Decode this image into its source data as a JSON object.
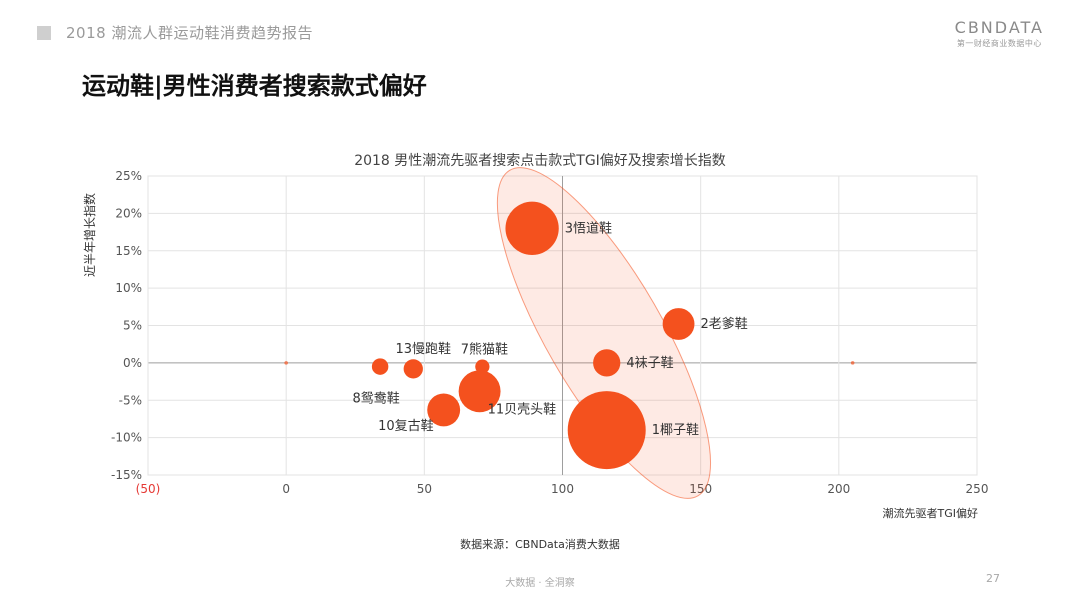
{
  "header": {
    "report_title": "2018 潮流人群运动鞋消费趋势报告",
    "brand_name": "CBNDATA",
    "brand_subtitle": "第一财经商业数据中心"
  },
  "page_heading": "运动鞋|男性消费者搜索款式偏好",
  "chart_data": {
    "type": "scatter",
    "subtype": "bubble",
    "title": "2018 男性潮流先驱者搜索点击款式TGI偏好及搜索增长指数",
    "xlabel": "潮流先驱者TGI偏好",
    "ylabel": "近半年增长指数",
    "xlim": [
      -50,
      250
    ],
    "ylim": [
      -15,
      25
    ],
    "x_ticks": [
      "(50)",
      "0",
      "50",
      "100",
      "150",
      "200",
      "250"
    ],
    "y_ticks": [
      "25%",
      "20%",
      "15%",
      "10%",
      "5%",
      "0%",
      "-5%",
      "-10%",
      "-15%"
    ],
    "grid": true,
    "bubble_color": "#f4511e",
    "points": [
      {
        "label": "3悟道鞋",
        "x": 89,
        "y": 18,
        "size": 4.2
      },
      {
        "label": "2老爹鞋",
        "x": 142,
        "y": 5.2,
        "size": 1.5
      },
      {
        "label": "4袜子鞋",
        "x": 116,
        "y": 0,
        "size": 1.1
      },
      {
        "label": "1椰子鞋",
        "x": 116,
        "y": -9,
        "size": 9.0
      },
      {
        "label": "13慢跑鞋",
        "x": 46,
        "y": -0.8,
        "size": 0.55
      },
      {
        "label": "7熊猫鞋",
        "x": 71,
        "y": -0.5,
        "size": 0.3
      },
      {
        "label": "8鸳鸯鞋",
        "x": 34,
        "y": -0.5,
        "size": 0.4
      },
      {
        "label": "11贝壳头鞋",
        "x": 70,
        "y": -3.8,
        "size": 2.6
      },
      {
        "label": "10复古鞋",
        "x": 57,
        "y": -6.3,
        "size": 1.6
      }
    ],
    "highlight_ellipse_color": "#f4511e"
  },
  "source_note": "数据来源：CBNData消费大数据",
  "footer": {
    "tagline": "大数据 · 全洞察",
    "page_number": "27"
  }
}
